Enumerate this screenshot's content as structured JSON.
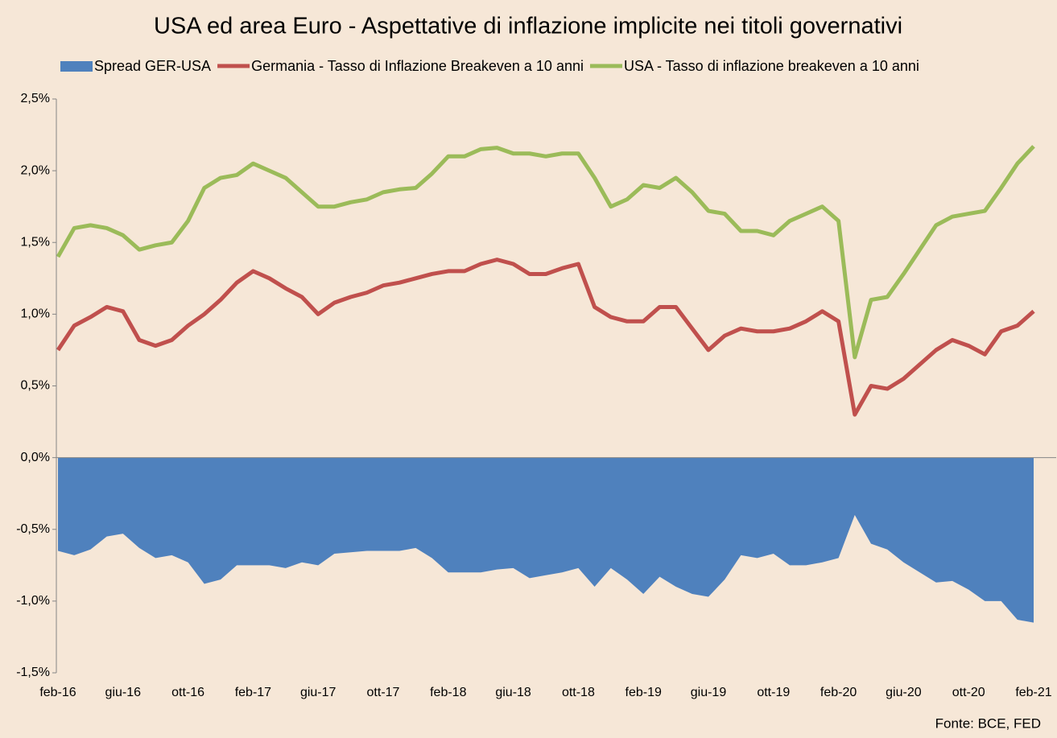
{
  "chart_data": {
    "type": "line",
    "title": "USA ed area Euro - Aspettative di inflazione implicite nei titoli governativi",
    "source": "Fonte: BCE, FED",
    "categories": [
      "feb-16",
      null,
      null,
      null,
      "giu-16",
      null,
      null,
      null,
      "ott-16",
      null,
      null,
      null,
      "feb-17",
      null,
      null,
      null,
      "giu-17",
      null,
      null,
      null,
      "ott-17",
      null,
      null,
      null,
      "feb-18",
      null,
      null,
      null,
      "giu-18",
      null,
      null,
      null,
      "ott-18",
      null,
      null,
      null,
      "feb-19",
      null,
      null,
      null,
      "giu-19",
      null,
      null,
      null,
      "ott-19",
      null,
      null,
      null,
      "feb-20",
      null,
      null,
      null,
      "giu-20",
      null,
      null,
      null,
      "ott-20",
      null,
      null,
      null,
      "feb-21"
    ],
    "ylim": [
      -1.5,
      2.5
    ],
    "yticks": [
      {
        "value": -1.5,
        "label": "-1,5%"
      },
      {
        "value": -1,
        "label": "-1,0%"
      },
      {
        "value": -0.5,
        "label": "-0,5%"
      },
      {
        "value": 0,
        "label": "0,0%"
      },
      {
        "value": 0.5,
        "label": "0,5%"
      },
      {
        "value": 1,
        "label": "1,0%"
      },
      {
        "value": 1.5,
        "label": "1,5%"
      },
      {
        "value": 2,
        "label": "2,0%"
      },
      {
        "value": 2.5,
        "label": "2,5%"
      }
    ],
    "legend": "top",
    "series": [
      {
        "name": "Spread GER-USA",
        "type": "area",
        "color": "#4f81bd",
        "values": [
          -0.65,
          -0.68,
          -0.64,
          -0.55,
          -0.53,
          -0.63,
          -0.7,
          -0.68,
          -0.73,
          -0.88,
          -0.85,
          -0.75,
          -0.75,
          -0.75,
          -0.77,
          -0.73,
          -0.75,
          -0.67,
          -0.66,
          -0.65,
          -0.65,
          -0.65,
          -0.63,
          -0.7,
          -0.8,
          -0.8,
          -0.8,
          -0.78,
          -0.77,
          -0.84,
          -0.82,
          -0.8,
          -0.77,
          -0.9,
          -0.77,
          -0.85,
          -0.95,
          -0.83,
          -0.9,
          -0.95,
          -0.97,
          -0.85,
          -0.68,
          -0.7,
          -0.67,
          -0.75,
          -0.75,
          -0.73,
          -0.7,
          -0.4,
          -0.6,
          -0.64,
          -0.73,
          -0.8,
          -0.87,
          -0.86,
          -0.92,
          -1.0,
          -1.0,
          -1.13,
          -1.15
        ]
      },
      {
        "name": "Germania - Tasso di Inflazione Breakeven a 10 anni",
        "type": "line",
        "color": "#c0504d",
        "values": [
          0.75,
          0.92,
          0.98,
          1.05,
          1.02,
          0.82,
          0.78,
          0.82,
          0.92,
          1.0,
          1.1,
          1.22,
          1.3,
          1.25,
          1.18,
          1.12,
          1.0,
          1.08,
          1.12,
          1.15,
          1.2,
          1.22,
          1.25,
          1.28,
          1.3,
          1.3,
          1.35,
          1.38,
          1.35,
          1.28,
          1.28,
          1.32,
          1.35,
          1.05,
          0.98,
          0.95,
          0.95,
          1.05,
          1.05,
          0.9,
          0.75,
          0.85,
          0.9,
          0.88,
          0.88,
          0.9,
          0.95,
          1.02,
          0.95,
          0.3,
          0.5,
          0.48,
          0.55,
          0.65,
          0.75,
          0.82,
          0.78,
          0.72,
          0.88,
          0.92,
          1.02
        ]
      },
      {
        "name": "USA - Tasso di inflazione breakeven a 10 anni",
        "type": "line",
        "color": "#9bbb59",
        "values": [
          1.4,
          1.6,
          1.62,
          1.6,
          1.55,
          1.45,
          1.48,
          1.5,
          1.65,
          1.88,
          1.95,
          1.97,
          2.05,
          2.0,
          1.95,
          1.85,
          1.75,
          1.75,
          1.78,
          1.8,
          1.85,
          1.87,
          1.88,
          1.98,
          2.1,
          2.1,
          2.15,
          2.16,
          2.12,
          2.12,
          2.1,
          2.12,
          2.12,
          1.95,
          1.75,
          1.8,
          1.9,
          1.88,
          1.95,
          1.85,
          1.72,
          1.7,
          1.58,
          1.58,
          1.55,
          1.65,
          1.7,
          1.75,
          1.65,
          0.7,
          1.1,
          1.12,
          1.28,
          1.45,
          1.62,
          1.68,
          1.7,
          1.72,
          1.88,
          2.05,
          2.17
        ]
      }
    ]
  }
}
